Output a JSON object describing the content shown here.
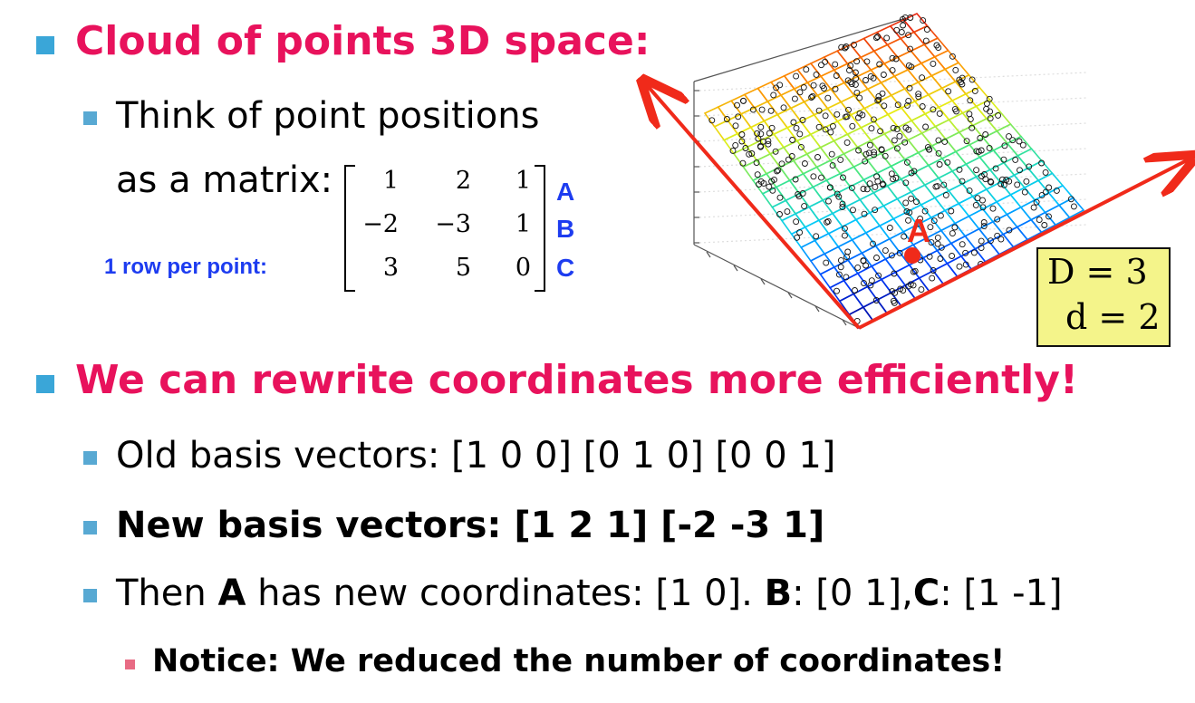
{
  "heading1": "Cloud of points 3D space:",
  "sub1_line1": "Think of point positions",
  "sub1_line2": "as a matrix:",
  "row_per_point": "1 row per point:",
  "matrix": {
    "rows": [
      [
        "1",
        "2",
        "1"
      ],
      [
        "−2",
        "−3",
        "1"
      ],
      [
        "3",
        "5",
        "0"
      ]
    ],
    "labels": [
      "A",
      "B",
      "C"
    ]
  },
  "figure": {
    "point_label": "A",
    "D_line": "D = 3",
    "d_line": "d = 2"
  },
  "heading2": "We can rewrite coordinates more efficiently!",
  "old_basis": "Old basis vectors: [1 0 0] [0 1 0] [0 0 1]",
  "new_basis": "New basis vectors: [1 2 1] [-2 -3 1]",
  "then_parts": {
    "p1": "Then ",
    "A": "A",
    "p2": " has new coordinates: [1 0]. ",
    "B": "B",
    "p3": ": [0 1],",
    "C": "C",
    "p4": ": [1 -1]"
  },
  "notice": "Notice: We reduced the number of coordinates!",
  "colors": {
    "heading": "#e8125c",
    "bullet": "#3aa6d8",
    "sub_bullet": "#e86b84",
    "label_blue": "#1d3cf0",
    "axis_red": "#f02a1a",
    "box_yellow": "#f4f48a"
  }
}
